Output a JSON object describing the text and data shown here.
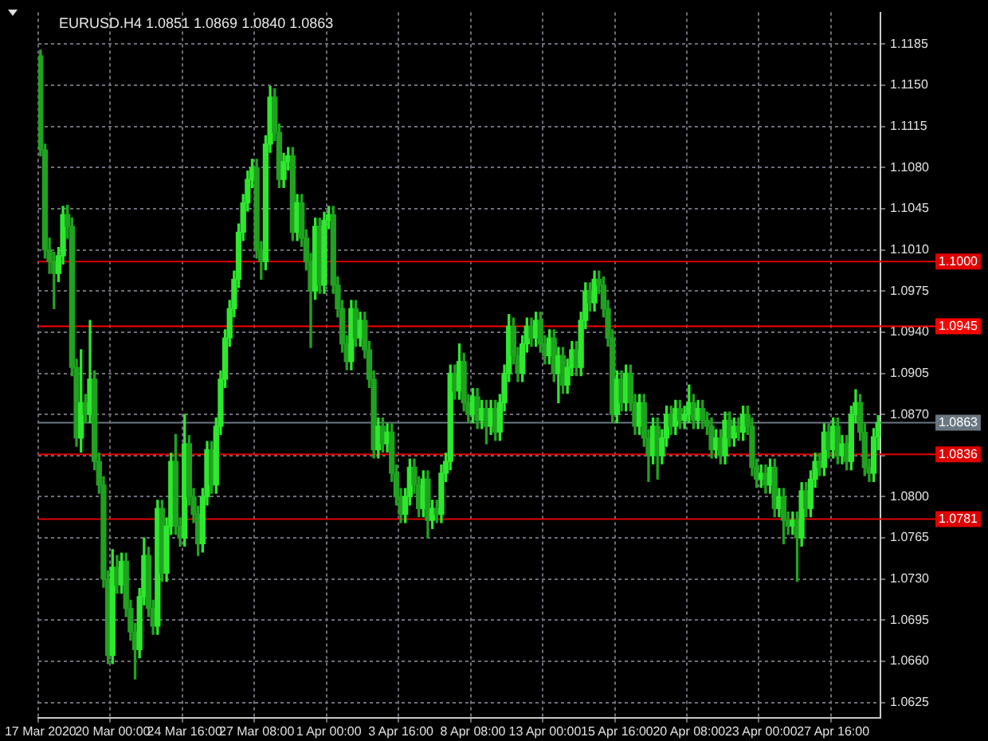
{
  "chart_data": {
    "type": "candlestick",
    "title": "EURUSD.H4 1.0851 1.0869 1.0840 1.0863",
    "colors": [
      "#20a220",
      "#20a220",
      "#20a220",
      "#20a220",
      "#2ee82e",
      "#2ee82e",
      "#20a220",
      "#20a220",
      "#20a220",
      "#2ee82e",
      "#20a220",
      "#2ee82e",
      "#20a220",
      "#20a220",
      "#20a220",
      "#20a220",
      "#2ee82e",
      "#20a220",
      "#2ee82e",
      "#20a220",
      "#20a220",
      "#20a220",
      "#2ee82e",
      "#2ee82e",
      "#20a220",
      "#20a220",
      "#2ee82e",
      "#20a220",
      "#2ee82e",
      "#2ee82e",
      "#20a220",
      "#20a220",
      "#2ee82e",
      "#20a220",
      "#20a220",
      "#20a220",
      "#2ee82e",
      "#2ee82e",
      "#20a220",
      "#2ee82e",
      "#2ee82e",
      "#2ee82e",
      "#2ee82e",
      "#2ee82e",
      "#2ee82e",
      "#2ee82e",
      "#2ee82e",
      "#2ee82e",
      "#20a220",
      "#20a220",
      "#2ee82e",
      "#2ee82e",
      "#20a220",
      "#20a220",
      "#2ee82e",
      "#2ee82e",
      "#20a220",
      "#2ee82e",
      "#20a220",
      "#20a220",
      "#20a220",
      "#2ee82e",
      "#20a220",
      "#2ee82e",
      "#2ee82e",
      "#20a220",
      "#20a220",
      "#20a220",
      "#20a220",
      "#2ee82e",
      "#20a220",
      "#2ee82e",
      "#20a220",
      "#20a220",
      "#20a220",
      "#2ee82e",
      "#20a220",
      "#2ee82e",
      "#20a220",
      "#20a220",
      "#20a220",
      "#2ee82e",
      "#2ee82e",
      "#20a220",
      "#20a220",
      "#2ee82e",
      "#20a220",
      "#2ee82e",
      "#20a220",
      "#2ee82e",
      "#2ee82e",
      "#2ee82e",
      "#20a220",
      "#2ee82e",
      "#20a220",
      "#20a220",
      "#2ee82e",
      "#20a220",
      "#2ee82e",
      "#20a220",
      "#2ee82e",
      "#20a220",
      "#2ee82e",
      "#2ee82e",
      "#2ee82e",
      "#20a220",
      "#20a220",
      "#2ee82e",
      "#2ee82e",
      "#20a220",
      "#2ee82e",
      "#20a220",
      "#20a220",
      "#2ee82e",
      "#20a220",
      "#2ee82e",
      "#20a220",
      "#2ee82e",
      "#2ee82e",
      "#20a220",
      "#2ee82e",
      "#2ee82e",
      "#20a220",
      "#2ee82e",
      "#20a220",
      "#20a220",
      "#20a220",
      "#20a220",
      "#2ee82e",
      "#20a220",
      "#2ee82e",
      "#20a220",
      "#20a220",
      "#2ee82e",
      "#20a220",
      "#20a220",
      "#2ee82e",
      "#20a220",
      "#2ee82e",
      "#2ee82e",
      "#20a220",
      "#2ee82e",
      "#20a220",
      "#2ee82e",
      "#2ee82e",
      "#20a220",
      "#2ee82e",
      "#20a220",
      "#20a220",
      "#20a220",
      "#2ee82e",
      "#20a220",
      "#2ee82e",
      "#20a220",
      "#2ee82e",
      "#20a220",
      "#2ee82e",
      "#20a220",
      "#20a220",
      "#20a220",
      "#2ee82e",
      "#20a220",
      "#2ee82e",
      "#20a220",
      "#2ee82e",
      "#20a220",
      "#20a220",
      "#2ee82e",
      "#20a220",
      "#2ee82e",
      "#20a220",
      "#2ee82e",
      "#2ee82e",
      "#20a220",
      "#2ee82e",
      "#20a220",
      "#2ee82e",
      "#20a220",
      "#2ee82e",
      "#20a220",
      "#2ee82e",
      "#2ee82e",
      "#20a220",
      "#20a220",
      "#20a220",
      "#2ee82e",
      "#2ee82e"
    ],
    "categories": [
      "17 Mar 2020",
      null,
      null,
      null,
      null,
      null,
      null,
      null,
      null,
      null,
      null,
      null,
      null,
      null,
      null,
      null,
      "20 Mar 00:00",
      null,
      null,
      null,
      null,
      null,
      null,
      null,
      null,
      null,
      null,
      null,
      null,
      null,
      null,
      null,
      "24 Mar 16:00",
      null,
      null,
      null,
      null,
      null,
      null,
      null,
      null,
      null,
      null,
      null,
      null,
      null,
      null,
      null,
      "27 Mar 08:00",
      null,
      null,
      null,
      null,
      null,
      null,
      null,
      null,
      null,
      null,
      null,
      null,
      null,
      null,
      null,
      "1 Apr 00:00",
      null,
      null,
      null,
      null,
      null,
      null,
      null,
      null,
      null,
      null,
      null,
      null,
      null,
      null,
      null,
      "3 Apr 16:00",
      null,
      null,
      null,
      null,
      null,
      null,
      null,
      null,
      null,
      null,
      null,
      null,
      null,
      null,
      null,
      "8 Apr 08:00",
      null,
      null,
      null,
      null,
      null,
      null,
      null,
      null,
      null,
      null,
      null,
      null,
      null,
      null,
      null,
      "13 Apr 00:00",
      null,
      null,
      null,
      null,
      null,
      null,
      null,
      null,
      null,
      null,
      null,
      null,
      null,
      null,
      null,
      "15 Apr 16:00",
      null,
      null,
      null,
      null,
      null,
      null,
      null,
      null,
      null,
      null,
      null,
      null,
      null,
      null,
      null,
      "20 Apr 08:00",
      null,
      null,
      null,
      null,
      null,
      null,
      null,
      null,
      null,
      null,
      null,
      null,
      null,
      null,
      null,
      "23 Apr 00:00",
      null,
      null,
      null,
      null,
      null,
      null,
      null,
      null,
      null,
      null,
      null,
      null,
      null,
      null,
      null,
      "27 Apr 16:00",
      null,
      null,
      null,
      null,
      null,
      null,
      null,
      null,
      null,
      null
    ],
    "ohlc": [
      [
        1.1175,
        1.118,
        1.109,
        1.1095
      ],
      [
        1.1095,
        1.11,
        1.1003,
        1.101
      ],
      [
        1.101,
        1.102,
        1.099,
        1.1
      ],
      [
        1.1,
        1.1008,
        1.096,
        1.099
      ],
      [
        1.099,
        1.1012,
        1.0983,
        1.1005
      ],
      [
        1.1005,
        1.1047,
        1.0998,
        1.104
      ],
      [
        1.104,
        1.1048,
        1.102,
        1.103
      ],
      [
        1.103,
        1.1037,
        1.0903,
        1.091
      ],
      [
        1.091,
        1.0917,
        1.0843,
        1.085
      ],
      [
        1.085,
        1.0925,
        1.0838,
        1.088
      ],
      [
        1.088,
        1.0887,
        1.0863,
        1.087
      ],
      [
        1.087,
        1.095,
        1.0863,
        1.09
      ],
      [
        1.09,
        1.0907,
        1.0823,
        1.083
      ],
      [
        1.083,
        1.0837,
        1.0803,
        1.081
      ],
      [
        1.081,
        1.0817,
        1.0723,
        1.073
      ],
      [
        1.073,
        1.0737,
        1.0658,
        1.0665
      ],
      [
        1.0665,
        1.0755,
        1.0658,
        1.074
      ],
      [
        1.074,
        1.075,
        1.0718,
        1.0725
      ],
      [
        1.0725,
        1.0752,
        1.0718,
        1.0745
      ],
      [
        1.0745,
        1.0752,
        1.0698,
        1.0705
      ],
      [
        1.0705,
        1.0712,
        1.0678,
        1.0685
      ],
      [
        1.0685,
        1.0692,
        1.0645,
        1.067
      ],
      [
        1.067,
        1.0722,
        1.0663,
        1.0715
      ],
      [
        1.0715,
        1.0765,
        1.0708,
        1.075
      ],
      [
        1.075,
        1.0757,
        1.0698,
        1.0705
      ],
      [
        1.0705,
        1.0712,
        1.0683,
        1.069
      ],
      [
        1.069,
        1.0797,
        1.0683,
        1.079
      ],
      [
        1.079,
        1.0797,
        1.0728,
        1.0735
      ],
      [
        1.0735,
        1.0782,
        1.0728,
        1.0775
      ],
      [
        1.0775,
        1.0837,
        1.0768,
        1.083
      ],
      [
        1.083,
        1.0853,
        1.0768,
        1.0775
      ],
      [
        1.0775,
        1.0782,
        1.0758,
        1.0765
      ],
      [
        1.0765,
        1.087,
        1.0758,
        1.0845
      ],
      [
        1.0845,
        1.0852,
        1.0793,
        1.08
      ],
      [
        1.08,
        1.0807,
        1.0778,
        1.0785
      ],
      [
        1.0785,
        1.0792,
        1.075,
        1.076
      ],
      [
        1.076,
        1.0807,
        1.0753,
        1.08
      ],
      [
        1.08,
        1.0847,
        1.0793,
        1.084
      ],
      [
        1.084,
        1.0847,
        1.0803,
        1.081
      ],
      [
        1.081,
        1.0867,
        1.0803,
        1.086
      ],
      [
        1.086,
        1.0907,
        1.0853,
        1.09
      ],
      [
        1.09,
        1.0942,
        1.0893,
        1.0935
      ],
      [
        1.0935,
        1.0967,
        1.0928,
        1.096
      ],
      [
        1.096,
        1.0992,
        1.0953,
        1.0985
      ],
      [
        1.0985,
        1.1032,
        1.0978,
        1.1025
      ],
      [
        1.1025,
        1.1057,
        1.1018,
        1.105
      ],
      [
        1.105,
        1.1077,
        1.1043,
        1.107
      ],
      [
        1.107,
        1.1087,
        1.1063,
        1.108
      ],
      [
        1.108,
        1.1087,
        1.1003,
        1.101
      ],
      [
        1.101,
        1.1017,
        1.0985,
        1.1
      ],
      [
        1.1,
        1.1107,
        1.0993,
        1.11
      ],
      [
        1.11,
        1.1149,
        1.1093,
        1.114
      ],
      [
        1.114,
        1.1147,
        1.1103,
        1.111
      ],
      [
        1.111,
        1.1117,
        1.1063,
        1.107
      ],
      [
        1.107,
        1.1092,
        1.1063,
        1.1085
      ],
      [
        1.1085,
        1.1097,
        1.1078,
        1.109
      ],
      [
        1.109,
        1.1097,
        1.1018,
        1.1025
      ],
      [
        1.1025,
        1.1057,
        1.1018,
        1.105
      ],
      [
        1.105,
        1.1057,
        1.1013,
        1.102
      ],
      [
        1.102,
        1.1027,
        1.0993,
        1.1
      ],
      [
        1.1,
        1.1007,
        1.0927,
        1.0975
      ],
      [
        1.0975,
        1.1037,
        1.0968,
        1.103
      ],
      [
        1.103,
        1.1037,
        1.0973,
        1.098
      ],
      [
        1.098,
        1.1042,
        1.0973,
        1.1035
      ],
      [
        1.1035,
        1.1047,
        1.1028,
        1.104
      ],
      [
        1.104,
        1.1047,
        1.0973,
        1.098
      ],
      [
        1.098,
        1.0987,
        1.0953,
        1.096
      ],
      [
        1.096,
        1.0967,
        1.0923,
        1.093
      ],
      [
        1.093,
        1.0937,
        1.0908,
        1.0915
      ],
      [
        1.0915,
        1.0967,
        1.0908,
        1.096
      ],
      [
        1.096,
        1.0967,
        1.0928,
        1.0935
      ],
      [
        1.0935,
        1.0957,
        1.0928,
        1.095
      ],
      [
        1.095,
        1.0957,
        1.0918,
        1.0925
      ],
      [
        1.0925,
        1.0932,
        1.0893,
        1.09
      ],
      [
        1.09,
        1.0907,
        1.0833,
        1.084
      ],
      [
        1.084,
        1.0867,
        1.0833,
        1.086
      ],
      [
        1.086,
        1.0867,
        1.0838,
        1.0845
      ],
      [
        1.0845,
        1.0862,
        1.0838,
        1.0855
      ],
      [
        1.0855,
        1.0862,
        1.0813,
        1.082
      ],
      [
        1.082,
        1.0827,
        1.0793,
        1.08
      ],
      [
        1.08,
        1.0807,
        1.0778,
        1.0785
      ],
      [
        1.0785,
        1.0807,
        1.0778,
        1.08
      ],
      [
        1.08,
        1.0832,
        1.0793,
        1.0825
      ],
      [
        1.0825,
        1.0832,
        1.0803,
        1.081
      ],
      [
        1.081,
        1.0817,
        1.0783,
        1.079
      ],
      [
        1.079,
        1.0822,
        1.0783,
        1.0815
      ],
      [
        1.0815,
        1.0822,
        1.0765,
        1.078
      ],
      [
        1.078,
        1.0797,
        1.0773,
        1.079
      ],
      [
        1.079,
        1.0797,
        1.0778,
        1.0785
      ],
      [
        1.0785,
        1.0827,
        1.0778,
        1.082
      ],
      [
        1.082,
        1.0837,
        1.0813,
        1.083
      ],
      [
        1.083,
        1.0912,
        1.0823,
        1.0905
      ],
      [
        1.0905,
        1.0912,
        1.0883,
        1.089
      ],
      [
        1.089,
        1.093,
        1.0883,
        1.0915
      ],
      [
        1.0915,
        1.0922,
        1.0873,
        1.088
      ],
      [
        1.088,
        1.0887,
        1.0863,
        1.087
      ],
      [
        1.087,
        1.0892,
        1.0863,
        1.0885
      ],
      [
        1.0885,
        1.0892,
        1.0858,
        1.0865
      ],
      [
        1.0865,
        1.0882,
        1.0858,
        1.0875
      ],
      [
        1.0875,
        1.0882,
        1.0845,
        1.086
      ],
      [
        1.086,
        1.0882,
        1.0853,
        1.0875
      ],
      [
        1.0875,
        1.0882,
        1.0848,
        1.0855
      ],
      [
        1.0855,
        1.0887,
        1.0848,
        1.088
      ],
      [
        1.088,
        1.0912,
        1.0873,
        1.0905
      ],
      [
        1.0905,
        1.0955,
        1.0898,
        1.0945
      ],
      [
        1.0945,
        1.0952,
        1.0913,
        1.092
      ],
      [
        1.092,
        1.0927,
        1.0898,
        1.0905
      ],
      [
        1.0905,
        1.0937,
        1.0898,
        1.093
      ],
      [
        1.093,
        1.0952,
        1.0923,
        1.0945
      ],
      [
        1.0945,
        1.0952,
        1.0928,
        1.0935
      ],
      [
        1.0935,
        1.0957,
        1.0928,
        1.095
      ],
      [
        1.095,
        1.0957,
        1.0923,
        1.093
      ],
      [
        1.093,
        1.0937,
        1.0913,
        1.092
      ],
      [
        1.092,
        1.0942,
        1.0913,
        1.0935
      ],
      [
        1.0935,
        1.0942,
        1.0898,
        1.0905
      ],
      [
        1.0905,
        1.0927,
        1.088,
        1.092
      ],
      [
        1.092,
        1.0927,
        1.0888,
        1.0895
      ],
      [
        1.0895,
        1.0917,
        1.0888,
        1.091
      ],
      [
        1.091,
        1.0932,
        1.0903,
        1.0925
      ],
      [
        1.0925,
        1.0932,
        1.0903,
        1.091
      ],
      [
        1.091,
        1.0957,
        1.0903,
        1.095
      ],
      [
        1.095,
        1.0982,
        1.0943,
        1.0975
      ],
      [
        1.0975,
        1.0982,
        1.0958,
        1.0965
      ],
      [
        1.0965,
        1.0992,
        1.0958,
        1.0985
      ],
      [
        1.0985,
        1.0992,
        1.0973,
        1.098
      ],
      [
        1.098,
        1.0987,
        1.0953,
        1.096
      ],
      [
        1.096,
        1.0967,
        1.0928,
        1.0935
      ],
      [
        1.0935,
        1.0942,
        1.0863,
        1.087
      ],
      [
        1.087,
        1.0907,
        1.0863,
        1.09
      ],
      [
        1.09,
        1.0907,
        1.0873,
        1.088
      ],
      [
        1.088,
        1.0912,
        1.0873,
        1.0905
      ],
      [
        1.0905,
        1.0912,
        1.0873,
        1.088
      ],
      [
        1.088,
        1.0887,
        1.0853,
        1.086
      ],
      [
        1.086,
        1.0887,
        1.0853,
        1.088
      ],
      [
        1.088,
        1.0887,
        1.0843,
        1.085
      ],
      [
        1.085,
        1.0857,
        1.0813,
        1.0835
      ],
      [
        1.0835,
        1.0867,
        1.0828,
        1.086
      ],
      [
        1.086,
        1.0867,
        1.0815,
        1.0835
      ],
      [
        1.0835,
        1.0857,
        1.0828,
        1.085
      ],
      [
        1.085,
        1.0877,
        1.0843,
        1.087
      ],
      [
        1.087,
        1.0877,
        1.0853,
        1.086
      ],
      [
        1.086,
        1.0882,
        1.0853,
        1.0875
      ],
      [
        1.0875,
        1.0882,
        1.0858,
        1.0865
      ],
      [
        1.0865,
        1.0877,
        1.0858,
        1.087
      ],
      [
        1.087,
        1.0895,
        1.0863,
        1.088
      ],
      [
        1.088,
        1.0887,
        1.0858,
        1.0865
      ],
      [
        1.0865,
        1.0882,
        1.0858,
        1.0875
      ],
      [
        1.0875,
        1.0882,
        1.0858,
        1.0865
      ],
      [
        1.0865,
        1.0872,
        1.0853,
        1.086
      ],
      [
        1.086,
        1.0867,
        1.0833,
        1.084
      ],
      [
        1.084,
        1.0857,
        1.0833,
        1.085
      ],
      [
        1.085,
        1.0857,
        1.0828,
        1.0835
      ],
      [
        1.0835,
        1.0872,
        1.0828,
        1.0865
      ],
      [
        1.0865,
        1.0872,
        1.0843,
        1.085
      ],
      [
        1.085,
        1.0867,
        1.0843,
        1.086
      ],
      [
        1.086,
        1.0867,
        1.0848,
        1.0855
      ],
      [
        1.0855,
        1.0877,
        1.0848,
        1.087
      ],
      [
        1.087,
        1.0877,
        1.0853,
        1.086
      ],
      [
        1.086,
        1.0867,
        1.0818,
        1.0825
      ],
      [
        1.0825,
        1.0832,
        1.0808,
        1.0815
      ],
      [
        1.0815,
        1.0827,
        1.0808,
        1.082
      ],
      [
        1.082,
        1.0827,
        1.0803,
        1.081
      ],
      [
        1.081,
        1.0832,
        1.0803,
        1.0825
      ],
      [
        1.0825,
        1.0832,
        1.0783,
        1.079
      ],
      [
        1.079,
        1.0807,
        1.0783,
        1.08
      ],
      [
        1.08,
        1.0807,
        1.076,
        1.078
      ],
      [
        1.078,
        1.0787,
        1.0768,
        1.0775
      ],
      [
        1.0775,
        1.0787,
        1.0768,
        1.078
      ],
      [
        1.078,
        1.0787,
        1.0728,
        1.0765
      ],
      [
        1.0765,
        1.0812,
        1.0758,
        1.0805
      ],
      [
        1.0805,
        1.0812,
        1.0783,
        1.079
      ],
      [
        1.079,
        1.0822,
        1.0783,
        1.0815
      ],
      [
        1.0815,
        1.0837,
        1.0808,
        1.083
      ],
      [
        1.083,
        1.0837,
        1.0818,
        1.0825
      ],
      [
        1.0825,
        1.0862,
        1.0818,
        1.0855
      ],
      [
        1.0855,
        1.0862,
        1.0833,
        1.084
      ],
      [
        1.084,
        1.0867,
        1.0833,
        1.086
      ],
      [
        1.086,
        1.0867,
        1.0828,
        1.0835
      ],
      [
        1.0835,
        1.0852,
        1.0828,
        1.0845
      ],
      [
        1.0845,
        1.0852,
        1.0823,
        1.083
      ],
      [
        1.083,
        1.0877,
        1.0823,
        1.087
      ],
      [
        1.087,
        1.0891,
        1.0863,
        1.088
      ],
      [
        1.088,
        1.0887,
        1.0848,
        1.0855
      ],
      [
        1.0855,
        1.0862,
        1.0818,
        1.0825
      ],
      [
        1.0825,
        1.0832,
        1.0813,
        1.082
      ],
      [
        1.082,
        1.0858,
        1.0813,
        1.0851
      ],
      [
        1.0851,
        1.0869,
        1.084,
        1.0863
      ]
    ],
    "ylim": [
      1.0612,
      1.1212
    ],
    "yticks": [
      {
        "value": 1.0625,
        "label": "1.0625"
      },
      {
        "value": 1.066,
        "label": "1.0660"
      },
      {
        "value": 1.0695,
        "label": "1.0695"
      },
      {
        "value": 1.073,
        "label": "1.0730"
      },
      {
        "value": 1.0765,
        "label": "1.0765"
      },
      {
        "value": 1.08,
        "label": "1.0800"
      },
      {
        "value": 1.0835,
        "label": null
      },
      {
        "value": 1.087,
        "label": "1.0870"
      },
      {
        "value": 1.0905,
        "label": "1.0905"
      },
      {
        "value": 1.094,
        "label": "1.0940"
      },
      {
        "value": 1.0975,
        "label": "1.0975"
      },
      {
        "value": 1.101,
        "label": "1.1010"
      },
      {
        "value": 1.1045,
        "label": "1.1045"
      },
      {
        "value": 1.108,
        "label": "1.1080"
      },
      {
        "value": 1.1115,
        "label": "1.1115"
      },
      {
        "value": 1.115,
        "label": "1.1150"
      },
      {
        "value": 1.1185,
        "label": "1.1185"
      }
    ],
    "grid": true,
    "ref_lines": [
      {
        "axis": "y",
        "value": 1.1,
        "label": "1.1000",
        "color": "#e00000"
      },
      {
        "axis": "y",
        "value": 1.0945,
        "label": "1.0945",
        "color": "#ff0000"
      },
      {
        "axis": "y",
        "value": 1.0836,
        "label": "1.0836",
        "color": "#e00000"
      },
      {
        "axis": "y",
        "value": 1.0781,
        "label": "1.0781",
        "color": "#e00000"
      },
      {
        "axis": "y",
        "value": 1.0863,
        "label": "1.0863",
        "color": "#6a7680"
      }
    ]
  }
}
